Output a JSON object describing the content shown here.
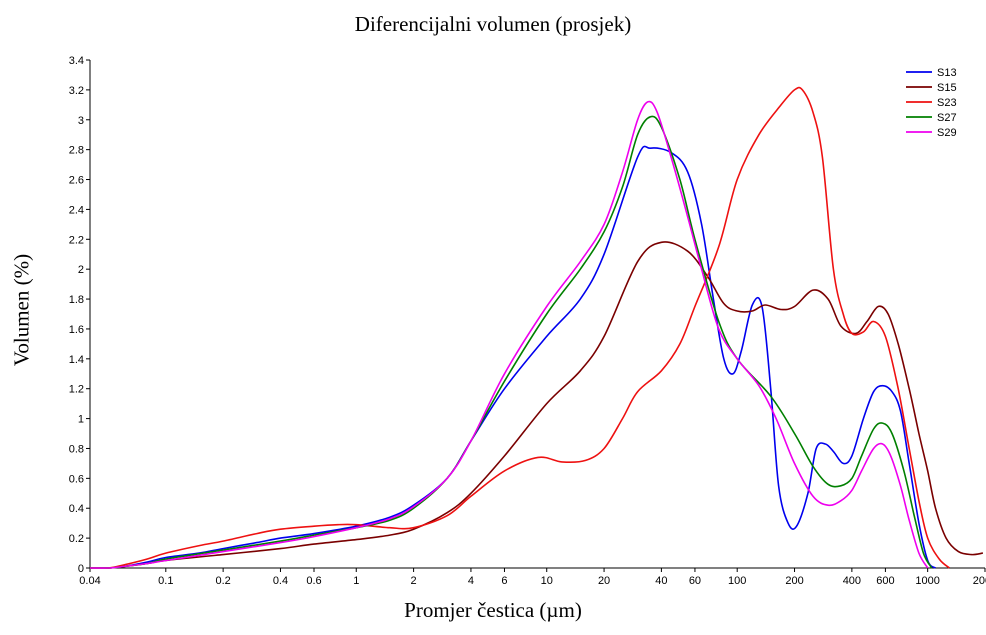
{
  "chart_data": {
    "type": "line",
    "title": "Diferencijalni volumen (prosjek)",
    "xlabel": "Promjer čestica (µm)",
    "ylabel": "Volumen (%)",
    "x_scale": "log",
    "xlim": [
      0.04,
      2000
    ],
    "ylim": [
      0,
      3.4
    ],
    "x_ticks": [
      0.04,
      0.1,
      0.2,
      0.4,
      0.6,
      1,
      2,
      4,
      6,
      10,
      20,
      40,
      60,
      100,
      200,
      400,
      600,
      1000,
      2000
    ],
    "x_tick_labels": [
      "0.04",
      "0.1",
      "0.2",
      "0.4",
      "0.6",
      "1",
      "2",
      "4",
      "6",
      "10",
      "20",
      "40",
      "60",
      "100",
      "200",
      "400",
      "600",
      "1000",
      "2000"
    ],
    "y_ticks": [
      0,
      0.2,
      0.4,
      0.6,
      0.8,
      1,
      1.2,
      1.4,
      1.6,
      1.8,
      2,
      2.2,
      2.4,
      2.6,
      2.8,
      3,
      3.2,
      3.4
    ],
    "y_tick_labels": [
      "0",
      "0.2",
      "0.4",
      "0.6",
      "0.8",
      "1",
      "1.2",
      "1.4",
      "1.6",
      "1.8",
      "2",
      "2.2",
      "2.4",
      "2.6",
      "2.8",
      "3",
      "3.2",
      "3.4"
    ],
    "grid": false,
    "legend_position": "top-right",
    "series": [
      {
        "name": "S13",
        "color": "#0000ee",
        "points": [
          [
            0.04,
            0
          ],
          [
            0.05,
            0
          ],
          [
            0.06,
            0.01
          ],
          [
            0.08,
            0.04
          ],
          [
            0.1,
            0.07
          ],
          [
            0.15,
            0.1
          ],
          [
            0.2,
            0.13
          ],
          [
            0.3,
            0.17
          ],
          [
            0.4,
            0.2
          ],
          [
            0.6,
            0.23
          ],
          [
            1,
            0.28
          ],
          [
            1.5,
            0.34
          ],
          [
            2,
            0.42
          ],
          [
            3,
            0.6
          ],
          [
            4,
            0.85
          ],
          [
            6,
            1.2
          ],
          [
            10,
            1.55
          ],
          [
            15,
            1.8
          ],
          [
            20,
            2.1
          ],
          [
            30,
            2.75
          ],
          [
            35,
            2.81
          ],
          [
            45,
            2.78
          ],
          [
            55,
            2.65
          ],
          [
            65,
            2.3
          ],
          [
            75,
            1.8
          ],
          [
            85,
            1.4
          ],
          [
            95,
            1.3
          ],
          [
            105,
            1.45
          ],
          [
            120,
            1.76
          ],
          [
            135,
            1.75
          ],
          [
            150,
            1.2
          ],
          [
            165,
            0.55
          ],
          [
            185,
            0.3
          ],
          [
            205,
            0.28
          ],
          [
            235,
            0.5
          ],
          [
            260,
            0.8
          ],
          [
            290,
            0.83
          ],
          [
            320,
            0.78
          ],
          [
            360,
            0.7
          ],
          [
            400,
            0.75
          ],
          [
            460,
            1.0
          ],
          [
            520,
            1.18
          ],
          [
            580,
            1.22
          ],
          [
            650,
            1.18
          ],
          [
            720,
            1.05
          ],
          [
            800,
            0.7
          ],
          [
            900,
            0.3
          ],
          [
            1000,
            0.05
          ],
          [
            1100,
            0
          ]
        ]
      },
      {
        "name": "S15",
        "color": "#7a0000",
        "points": [
          [
            0.04,
            0
          ],
          [
            0.05,
            0
          ],
          [
            0.06,
            0.01
          ],
          [
            0.08,
            0.03
          ],
          [
            0.1,
            0.05
          ],
          [
            0.2,
            0.09
          ],
          [
            0.4,
            0.13
          ],
          [
            0.6,
            0.16
          ],
          [
            1,
            0.19
          ],
          [
            1.5,
            0.22
          ],
          [
            2,
            0.26
          ],
          [
            3,
            0.37
          ],
          [
            4,
            0.5
          ],
          [
            6,
            0.75
          ],
          [
            10,
            1.1
          ],
          [
            15,
            1.32
          ],
          [
            20,
            1.55
          ],
          [
            30,
            2.05
          ],
          [
            40,
            2.18
          ],
          [
            55,
            2.12
          ],
          [
            70,
            1.95
          ],
          [
            85,
            1.77
          ],
          [
            100,
            1.72
          ],
          [
            120,
            1.72
          ],
          [
            140,
            1.76
          ],
          [
            170,
            1.73
          ],
          [
            200,
            1.75
          ],
          [
            250,
            1.86
          ],
          [
            300,
            1.8
          ],
          [
            350,
            1.62
          ],
          [
            420,
            1.57
          ],
          [
            480,
            1.65
          ],
          [
            550,
            1.75
          ],
          [
            620,
            1.7
          ],
          [
            700,
            1.5
          ],
          [
            800,
            1.2
          ],
          [
            900,
            0.9
          ],
          [
            1000,
            0.65
          ],
          [
            1100,
            0.4
          ],
          [
            1250,
            0.2
          ],
          [
            1450,
            0.11
          ],
          [
            1700,
            0.09
          ],
          [
            1950,
            0.1
          ]
        ]
      },
      {
        "name": "S23",
        "color": "#ee1111",
        "points": [
          [
            0.04,
            0
          ],
          [
            0.05,
            0
          ],
          [
            0.06,
            0.02
          ],
          [
            0.08,
            0.06
          ],
          [
            0.1,
            0.1
          ],
          [
            0.15,
            0.15
          ],
          [
            0.2,
            0.18
          ],
          [
            0.3,
            0.23
          ],
          [
            0.4,
            0.26
          ],
          [
            0.6,
            0.28
          ],
          [
            0.8,
            0.29
          ],
          [
            1,
            0.29
          ],
          [
            1.5,
            0.27
          ],
          [
            2,
            0.27
          ],
          [
            3,
            0.35
          ],
          [
            4,
            0.48
          ],
          [
            6,
            0.65
          ],
          [
            9,
            0.74
          ],
          [
            12,
            0.71
          ],
          [
            16,
            0.72
          ],
          [
            20,
            0.8
          ],
          [
            25,
            1.0
          ],
          [
            30,
            1.18
          ],
          [
            40,
            1.32
          ],
          [
            50,
            1.5
          ],
          [
            60,
            1.75
          ],
          [
            80,
            2.15
          ],
          [
            100,
            2.6
          ],
          [
            130,
            2.9
          ],
          [
            170,
            3.1
          ],
          [
            200,
            3.2
          ],
          [
            220,
            3.2
          ],
          [
            250,
            3.05
          ],
          [
            280,
            2.75
          ],
          [
            320,
            2.0
          ],
          [
            360,
            1.7
          ],
          [
            400,
            1.57
          ],
          [
            460,
            1.58
          ],
          [
            520,
            1.65
          ],
          [
            600,
            1.55
          ],
          [
            700,
            1.2
          ],
          [
            800,
            0.8
          ],
          [
            900,
            0.45
          ],
          [
            1000,
            0.2
          ],
          [
            1150,
            0.06
          ],
          [
            1300,
            0
          ]
        ]
      },
      {
        "name": "S27",
        "color": "#008000",
        "points": [
          [
            0.04,
            0
          ],
          [
            0.05,
            0
          ],
          [
            0.06,
            0.01
          ],
          [
            0.08,
            0.03
          ],
          [
            0.1,
            0.06
          ],
          [
            0.2,
            0.12
          ],
          [
            0.4,
            0.18
          ],
          [
            0.6,
            0.22
          ],
          [
            1,
            0.27
          ],
          [
            1.5,
            0.32
          ],
          [
            2,
            0.4
          ],
          [
            3,
            0.6
          ],
          [
            4,
            0.85
          ],
          [
            6,
            1.25
          ],
          [
            10,
            1.7
          ],
          [
            15,
            2.0
          ],
          [
            20,
            2.25
          ],
          [
            25,
            2.55
          ],
          [
            30,
            2.9
          ],
          [
            35,
            3.02
          ],
          [
            40,
            2.95
          ],
          [
            50,
            2.6
          ],
          [
            60,
            2.2
          ],
          [
            80,
            1.65
          ],
          [
            100,
            1.4
          ],
          [
            150,
            1.15
          ],
          [
            200,
            0.9
          ],
          [
            250,
            0.68
          ],
          [
            300,
            0.56
          ],
          [
            350,
            0.55
          ],
          [
            400,
            0.6
          ],
          [
            450,
            0.75
          ],
          [
            520,
            0.93
          ],
          [
            580,
            0.97
          ],
          [
            650,
            0.9
          ],
          [
            750,
            0.65
          ],
          [
            850,
            0.35
          ],
          [
            950,
            0.1
          ],
          [
            1050,
            0
          ]
        ]
      },
      {
        "name": "S29",
        "color": "#ee00ee",
        "points": [
          [
            0.04,
            0
          ],
          [
            0.05,
            0
          ],
          [
            0.06,
            0.01
          ],
          [
            0.08,
            0.03
          ],
          [
            0.1,
            0.05
          ],
          [
            0.2,
            0.11
          ],
          [
            0.4,
            0.17
          ],
          [
            0.6,
            0.21
          ],
          [
            1,
            0.27
          ],
          [
            1.5,
            0.33
          ],
          [
            2,
            0.41
          ],
          [
            3,
            0.6
          ],
          [
            4,
            0.85
          ],
          [
            6,
            1.3
          ],
          [
            10,
            1.75
          ],
          [
            15,
            2.05
          ],
          [
            20,
            2.3
          ],
          [
            25,
            2.65
          ],
          [
            30,
            3.0
          ],
          [
            34,
            3.12
          ],
          [
            38,
            3.05
          ],
          [
            45,
            2.75
          ],
          [
            55,
            2.35
          ],
          [
            65,
            2.0
          ],
          [
            80,
            1.6
          ],
          [
            100,
            1.4
          ],
          [
            130,
            1.22
          ],
          [
            160,
            1.0
          ],
          [
            200,
            0.7
          ],
          [
            250,
            0.48
          ],
          [
            300,
            0.42
          ],
          [
            350,
            0.45
          ],
          [
            400,
            0.52
          ],
          [
            450,
            0.65
          ],
          [
            520,
            0.8
          ],
          [
            580,
            0.83
          ],
          [
            640,
            0.75
          ],
          [
            720,
            0.55
          ],
          [
            800,
            0.32
          ],
          [
            900,
            0.1
          ],
          [
            1000,
            0
          ]
        ]
      }
    ]
  }
}
